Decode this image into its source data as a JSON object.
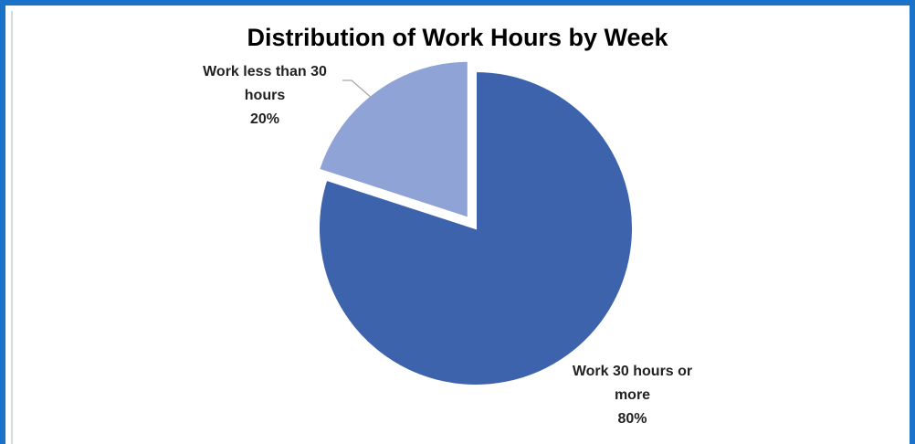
{
  "chart_data": {
    "type": "pie",
    "title": "Distribution of Work Hours by Week",
    "slices": [
      {
        "label": "Work 30 hours or more",
        "label_lines": [
          "Work 30 hours or",
          "more"
        ],
        "value": 80,
        "display": "80%",
        "color": "#3d63ad",
        "exploded": false
      },
      {
        "label": "Work less than 30 hours",
        "label_lines": [
          "Work less than 30",
          "hours"
        ],
        "value": 20,
        "display": "20%",
        "color": "#8fa3d6",
        "exploded": true
      }
    ],
    "legend": "none",
    "data_labels": "outside with leader line"
  }
}
